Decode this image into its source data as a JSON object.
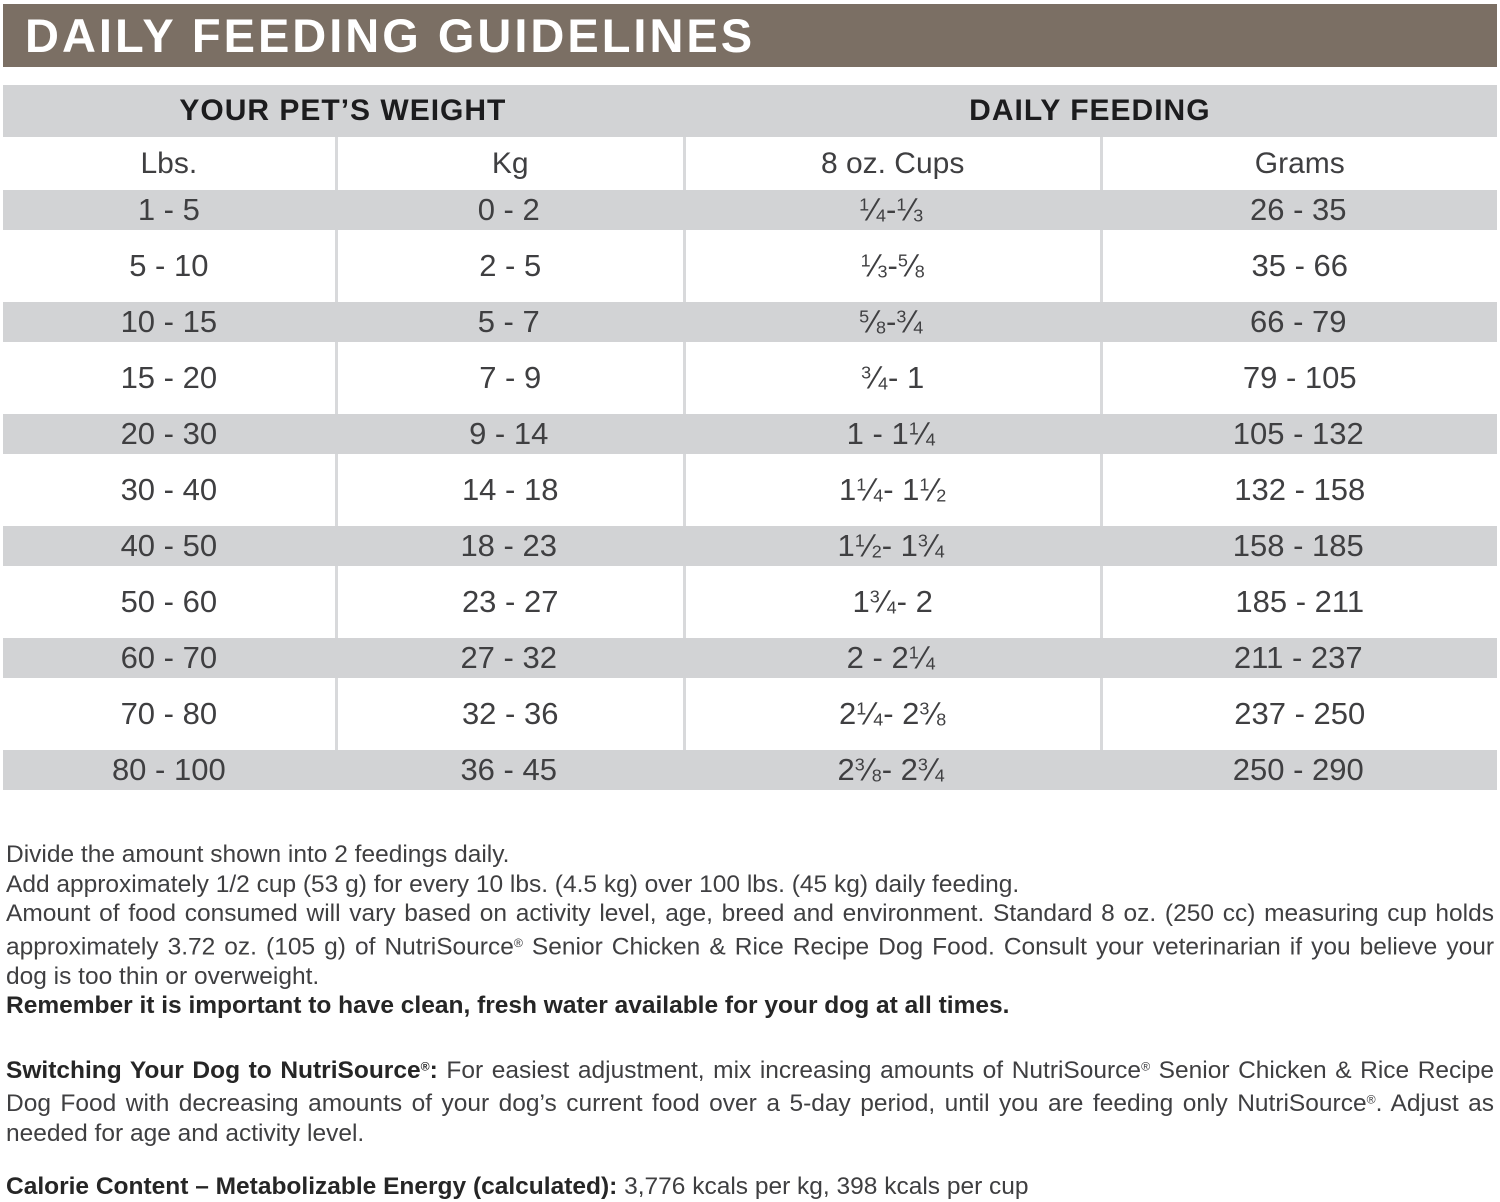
{
  "title": "DAILY FEEDING GUIDELINES",
  "colors": {
    "title_bar": "#7b6f64",
    "row_band": "#d2d3d5",
    "divider": "#d8d9db",
    "text": "#3f3f41"
  },
  "table": {
    "group_headers": [
      "YOUR PET’S WEIGHT",
      "DAILY FEEDING"
    ],
    "columns": [
      "Lbs.",
      "Kg",
      "8 oz. Cups",
      "Grams"
    ],
    "column_keys": [
      "lbs",
      "kg",
      "cups",
      "grams"
    ],
    "rows": [
      {
        "lbs": "1 - 5",
        "kg": "0 - 2",
        "cups": "1/4 - 1/3",
        "grams": "26 - 35"
      },
      {
        "lbs": "5 - 10",
        "kg": "2 - 5",
        "cups": "1/3 - 5/8",
        "grams": "35 - 66"
      },
      {
        "lbs": "10 - 15",
        "kg": "5 - 7",
        "cups": "5/8 - 3/4",
        "grams": "66 - 79"
      },
      {
        "lbs": "15 - 20",
        "kg": "7 - 9",
        "cups": "3/4 - 1",
        "grams": "79 - 105"
      },
      {
        "lbs": "20 - 30",
        "kg": "9 - 14",
        "cups": "1 - 1 1/4",
        "grams": "105 - 132"
      },
      {
        "lbs": "30 - 40",
        "kg": "14 - 18",
        "cups": "1 1/4 - 1 1/2",
        "grams": "132 - 158"
      },
      {
        "lbs": "40 - 50",
        "kg": "18 - 23",
        "cups": "1 1/2 - 1 3/4",
        "grams": "158 - 185"
      },
      {
        "lbs": "50 - 60",
        "kg": "23 - 27",
        "cups": "1 3/4 - 2",
        "grams": "185 - 211"
      },
      {
        "lbs": "60 - 70",
        "kg": "27 - 32",
        "cups": "2 - 2 1/4",
        "grams": "211 - 237"
      },
      {
        "lbs": "70 - 80",
        "kg": "32 - 36",
        "cups": "2 1/4 - 2 3/8",
        "grams": "237 - 250"
      },
      {
        "lbs": "80 - 100",
        "kg": "36 - 45",
        "cups": "2 3/8 - 2 3/4",
        "grams": "250 - 290"
      }
    ]
  },
  "notes": {
    "line1": "Divide the amount shown into 2 feedings daily.",
    "line2": "Add approximately 1/2 cup (53 g) for every 10 lbs. (4.5 kg) over 100 lbs. (45 kg) daily feeding.",
    "line3": "Amount of food consumed will vary based on activity level, age, breed and environment. Standard 8 oz. (250 cc) measuring cup holds approximately 3.72 oz. (105 g) of NutriSource® Senior Chicken & Rice Recipe Dog Food. Consult your veterinarian if you believe your dog is too thin or overweight.",
    "line4": "Remember it is important to have clean, fresh water available for your dog at all times."
  },
  "switching": {
    "lead": "Switching Your Dog to NutriSource®:",
    "body": " For easiest adjustment, mix increasing amounts of NutriSource® Senior Chicken & Rice Recipe Dog Food with decreasing amounts of your dog’s current food over a 5-day period, until you are feeding only NutriSource®. Adjust as needed for age and activity level."
  },
  "calorie": {
    "label": "Calorie Content – Metabolizable Energy (calculated):",
    "value": " 3,776 kcals per kg, 398 kcals per cup"
  }
}
